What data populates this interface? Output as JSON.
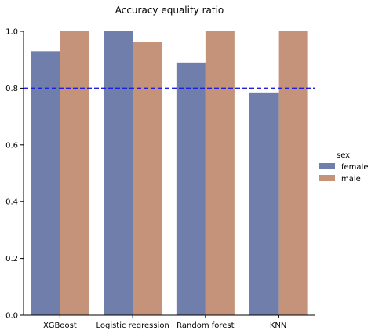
{
  "chart_data": {
    "type": "bar",
    "title": "Accuracy equality ratio",
    "xlabel": "",
    "ylabel": "",
    "categories": [
      "XGBoost",
      "Logistic regression",
      "Random forest",
      "KNN"
    ],
    "series": [
      {
        "name": "female",
        "color": "#6f7eaa",
        "values": [
          0.93,
          1.0,
          0.89,
          0.785
        ]
      },
      {
        "name": "male",
        "color": "#c4937a",
        "values": [
          1.0,
          0.962,
          1.0,
          1.0
        ]
      }
    ],
    "ylim": [
      0,
      1.0
    ],
    "yticks": [
      0.0,
      0.2,
      0.4,
      0.6,
      0.8,
      1.0
    ],
    "ytick_labels": [
      "0.0",
      "0.2",
      "0.4",
      "0.6",
      "0.8",
      "1.0"
    ],
    "reference_line": {
      "value": 0.8,
      "color": "#1f1fe0",
      "style": "dashed"
    },
    "legend": {
      "title": "sex",
      "placement": "right"
    },
    "grid": false
  }
}
